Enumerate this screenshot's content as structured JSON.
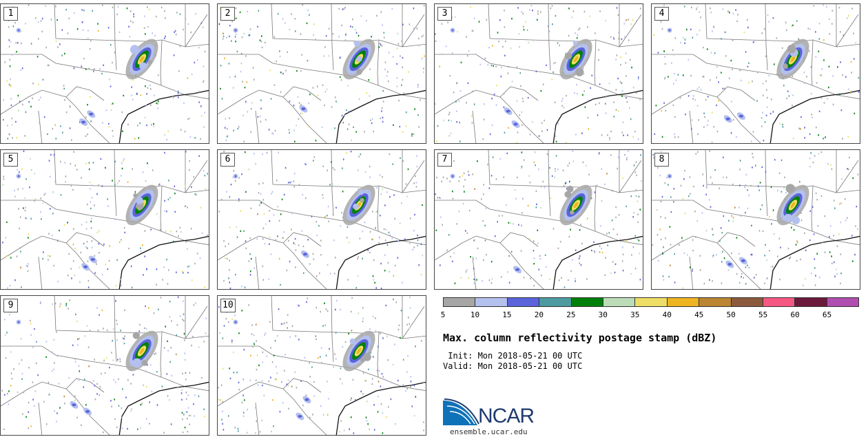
{
  "panels": [
    {
      "label": "1",
      "storm_cells": 3,
      "south_cells": 2
    },
    {
      "label": "2",
      "storm_cells": 3,
      "south_cells": 1
    },
    {
      "label": "3",
      "storm_cells": 3,
      "south_cells": 2
    },
    {
      "label": "4",
      "storm_cells": 3,
      "south_cells": 2
    },
    {
      "label": "5",
      "storm_cells": 3,
      "south_cells": 2
    },
    {
      "label": "6",
      "storm_cells": 3,
      "south_cells": 1
    },
    {
      "label": "7",
      "storm_cells": 3,
      "south_cells": 1
    },
    {
      "label": "8",
      "storm_cells": 3,
      "south_cells": 2
    },
    {
      "label": "9",
      "storm_cells": 3,
      "south_cells": 2
    },
    {
      "label": "10",
      "storm_cells": 3,
      "south_cells": 2
    }
  ],
  "colorbar": {
    "colors": [
      "#a6a6a6",
      "#b4c0ee",
      "#5b64da",
      "#4d9ba0",
      "#00800a",
      "#bcdcb8",
      "#eedd66",
      "#eeb422",
      "#bb8533",
      "#8b5a3c",
      "#f55882",
      "#6b1a3c",
      "#b04fb0"
    ],
    "ticks": [
      "5",
      "10",
      "15",
      "20",
      "25",
      "30",
      "35",
      "40",
      "45",
      "50",
      "55",
      "60",
      "65"
    ],
    "units": "dBZ"
  },
  "title": "Max. column reflectivity postage stamp (dBZ)",
  "init_line": " Init: Mon 2018-05-21 00 UTC",
  "valid_line": "Valid: Mon 2018-05-21 00 UTC",
  "logo_text": "NCAR",
  "site": "ensemble.ucar.edu"
}
